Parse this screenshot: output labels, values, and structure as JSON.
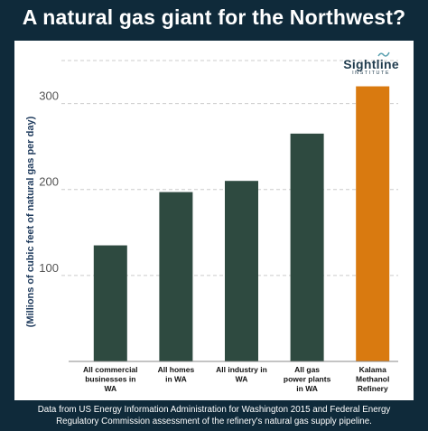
{
  "title": "A natural gas giant for the Northwest?",
  "logo": {
    "name": "Sightline",
    "subtitle": "INSTITUTE"
  },
  "footer": {
    "line1": "Data from US Energy Information Administration for Washington 2015 and Federal Energy",
    "line2": "Regulatory Commission assessment of the refinery's natural gas supply pipeline."
  },
  "colors": {
    "background": "#0f2a3a",
    "bar": "#2e4a40",
    "highlight": "#d97a10",
    "axis_label": "#1f3b5d",
    "grid": "#cccccc"
  },
  "chart_data": {
    "type": "bar",
    "title": "A natural gas giant for the Northwest?",
    "xlabel": "",
    "ylabel": "(Millions of cubic feet of natural gas per day)",
    "ylim": [
      0,
      350
    ],
    "yticks": [
      100,
      200,
      300
    ],
    "grid": true,
    "categories": [
      [
        "All commercial",
        "businesses in",
        "WA"
      ],
      [
        "All homes",
        "in WA"
      ],
      [
        "All industry in",
        "WA"
      ],
      [
        "All gas",
        "power plants",
        "in WA"
      ],
      [
        "Kalama",
        "Methanol",
        "Refinery"
      ]
    ],
    "values": [
      135,
      197,
      210,
      265,
      320
    ],
    "highlight_index": 4
  }
}
